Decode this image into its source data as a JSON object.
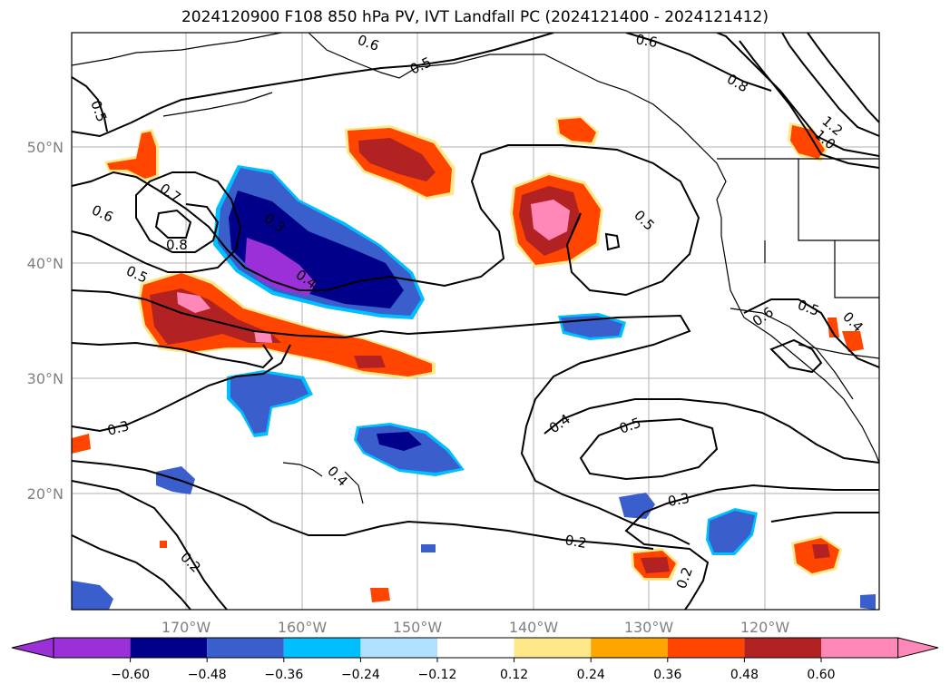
{
  "title": "2024120900 F108 850 hPa PV, IVT Landfall PC (2024121400 - 2024121412)",
  "map": {
    "lon_labels": [
      "170°W",
      "160°W",
      "150°W",
      "140°W",
      "130°W",
      "120°W"
    ],
    "lat_labels": [
      "50°N",
      "40°N",
      "30°N",
      "20°N"
    ],
    "contour_labels": [
      "0.5",
      "0.6",
      "0.7",
      "0.8",
      "0.5",
      "0.3",
      "0.4",
      "0.6",
      "0.5",
      "0.6",
      "0.8",
      "1.2",
      "1.0",
      "0.5",
      "0.6",
      "0.5",
      "0.4",
      "0.3",
      "0.4",
      "0.4",
      "0.5",
      "0.3",
      "0.2",
      "0.2",
      "0.2"
    ]
  },
  "colorbar": {
    "colors": [
      "#9b30d9",
      "#00008b",
      "#3a5fcd",
      "#00bfff",
      "#b0e2ff",
      "#ffffff",
      "#ffe88a",
      "#ffa500",
      "#ff4500",
      "#b22222",
      "#ff88b8"
    ],
    "tick_labels": [
      "−0.60",
      "−0.48",
      "−0.36",
      "−0.24",
      "−0.12",
      "0.12",
      "0.24",
      "0.36",
      "0.48",
      "0.60"
    ]
  }
}
